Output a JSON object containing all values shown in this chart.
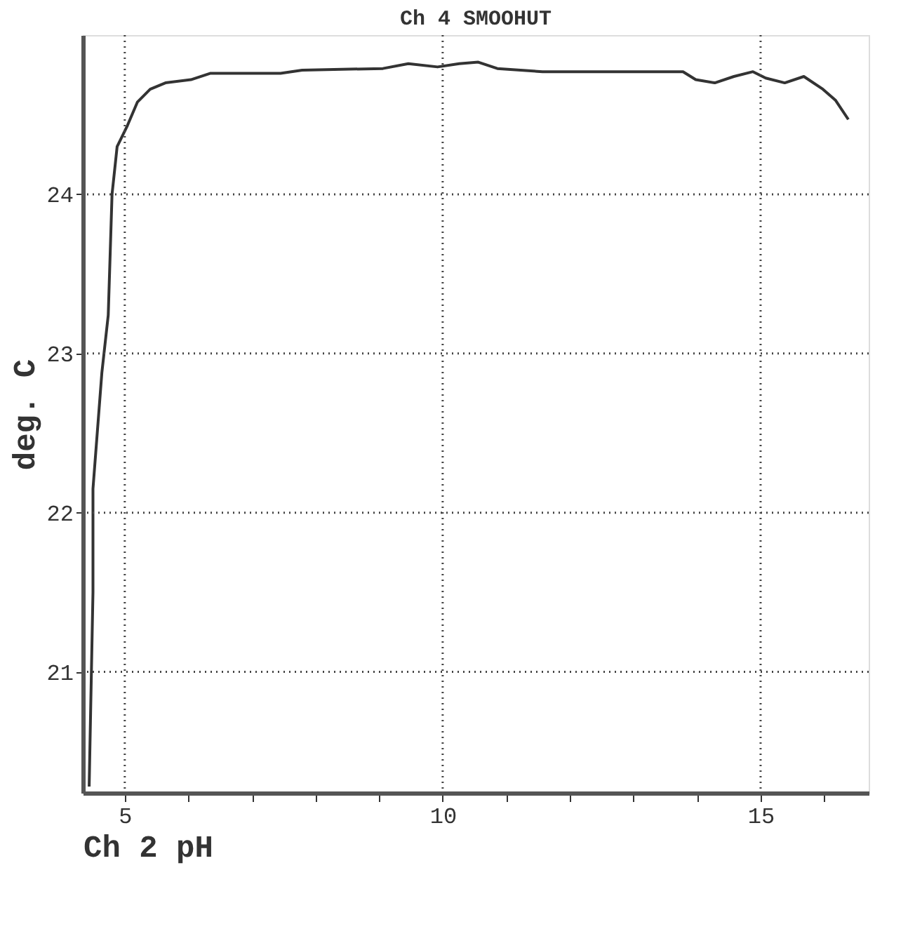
{
  "chart_data": {
    "type": "line",
    "title": "Ch 4 SMOOHUT",
    "xlabel": "Ch 2    pH",
    "ylabel": "deg. C",
    "x": [
      4.44,
      4.5,
      4.5,
      4.64,
      4.74,
      4.8,
      4.88,
      5.04,
      5.2,
      5.4,
      5.64,
      6.04,
      6.35,
      7.45,
      7.79,
      9.06,
      9.46,
      9.92,
      10.26,
      10.56,
      10.86,
      11.57,
      13.78,
      13.98,
      14.28,
      14.58,
      14.88,
      15.08,
      15.38,
      15.68,
      15.98,
      16.18,
      16.38
    ],
    "series": [
      {
        "color": "#333333",
        "values": [
          20.28,
          21.5,
          22.15,
          22.88,
          23.24,
          24.0,
          24.3,
          24.43,
          24.58,
          24.66,
          24.7,
          24.72,
          24.76,
          24.76,
          24.78,
          24.79,
          24.82,
          24.8,
          24.82,
          24.83,
          24.79,
          24.77,
          24.77,
          24.72,
          24.7,
          24.74,
          24.77,
          24.73,
          24.7,
          24.74,
          24.66,
          24.59,
          24.47
        ]
      }
    ],
    "xlim": [
      4.34,
      16.7
    ],
    "ylim": [
      20.24,
      25.0
    ],
    "xticks": [
      5,
      {
        "value": 6,
        "label": null
      },
      {
        "value": 7,
        "label": null
      },
      {
        "value": 8,
        "label": null
      },
      {
        "value": 9,
        "label": null
      },
      10,
      {
        "value": 11,
        "label": null
      },
      {
        "value": 12,
        "label": null
      },
      {
        "value": 13,
        "label": null
      },
      {
        "value": 14,
        "label": null
      },
      15,
      {
        "value": 16,
        "label": null
      }
    ],
    "yticks": [
      21,
      22,
      23,
      24
    ],
    "grid": true,
    "marker": "none",
    "line_style": "solid",
    "legend": false
  }
}
